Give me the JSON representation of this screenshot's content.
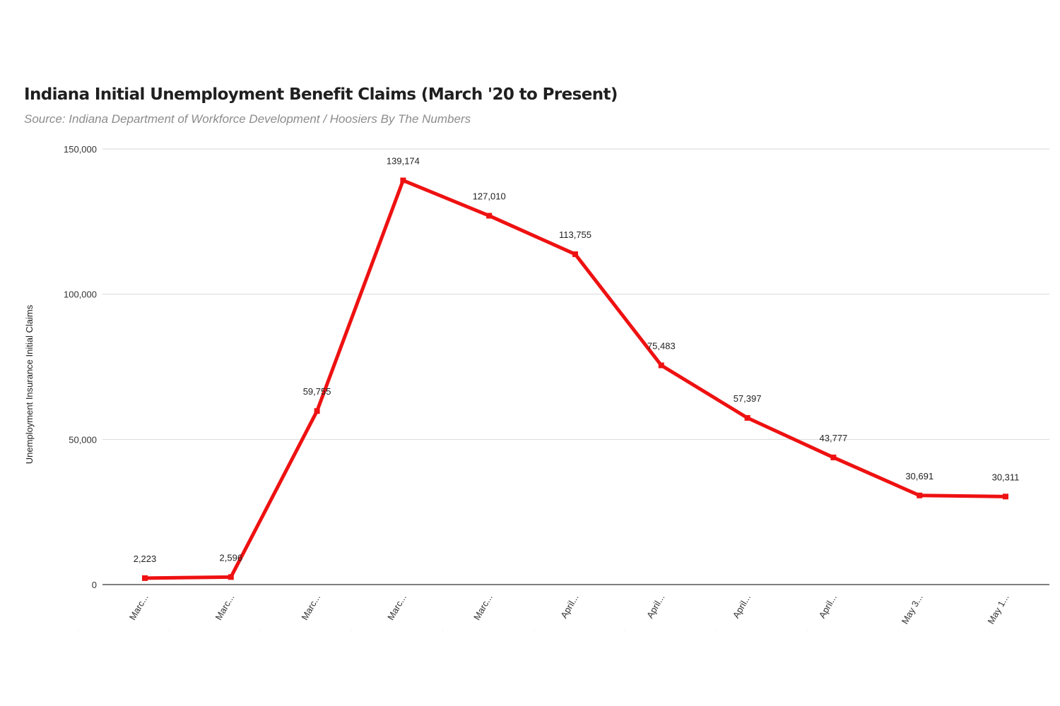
{
  "header": {
    "title": "Indiana Initial Unemployment Benefit Claims (March '20 to Present)",
    "subtitle": "Source: Indiana Department of Workforce Development / Hoosiers By The Numbers"
  },
  "colors": {
    "line": "#ee1111",
    "grid": "#d9d9d9",
    "baseline": "#555555",
    "text": "#333333"
  },
  "chart_data": {
    "type": "line",
    "title": "Indiana Initial Unemployment Benefit Claims (March '20 to Present)",
    "subtitle": "Source: Indiana Department of Workforce Development / Hoosiers By The Numbers",
    "xlabel": "",
    "ylabel": "Unemployment Insurance Initial Claims",
    "categories": [
      "Marc...",
      "Marc...",
      "Marc...",
      "Marc...",
      "Marc...",
      "April...",
      "April...",
      "April...",
      "April...",
      "May 3...",
      "May 1..."
    ],
    "series": [
      {
        "values": [
          2223,
          2596,
          59755,
          139174,
          127010,
          113755,
          75483,
          57397,
          43777,
          30691,
          30311
        ],
        "data_labels": [
          "2,223",
          "2,596",
          "59,755",
          "139,174",
          "127,010",
          "113,755",
          "75,483",
          "57,397",
          "43,777",
          "30,691",
          "30,311"
        ]
      }
    ],
    "ylim": [
      0,
      150000
    ],
    "yticks": [
      0,
      50000,
      100000,
      150000
    ],
    "ytick_labels": [
      "0",
      "50,000",
      "100,000",
      "150,000"
    ],
    "grid": true,
    "legend": "none"
  }
}
